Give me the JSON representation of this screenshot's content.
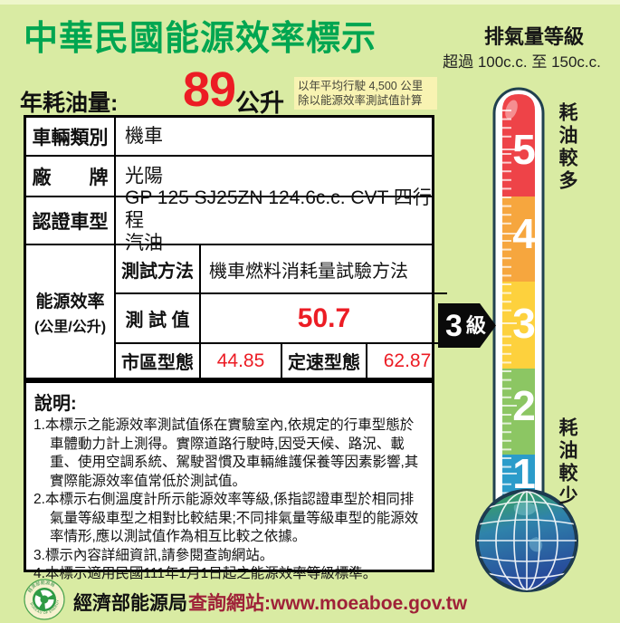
{
  "page": {
    "bg_color": "#d9eba3"
  },
  "header": {
    "title": "中華民國能源效率標示",
    "title_color": "#00a651",
    "displacement_title": "排氣量等級",
    "displacement_range": "超過 100c.c. 至 150c.c."
  },
  "annual": {
    "label": "年耗油量:",
    "value": "89",
    "unit": "公升",
    "value_color": "#ec1c24",
    "note_line1": "以年平均行駛 4,500 公里",
    "note_line2": "除以能源效率測試值計算"
  },
  "table": {
    "rows": [
      {
        "label": "車輛類別",
        "value": "機車"
      },
      {
        "label": "廠　　牌",
        "value": "光陽"
      },
      {
        "label": "認證車型",
        "value": "GP 125 SJ25ZN 124.6c.c. CVT 四行程\n汽油"
      }
    ],
    "efficiency": {
      "label_line1": "能源效率",
      "label_line2": "(公里/公升)",
      "method_label": "測試方法",
      "method_value": "機車燃料消耗量試驗方法",
      "test_label": "測 試 值",
      "test_value": "50.7",
      "urban_label": "市區型態",
      "urban_value": "44.85",
      "cruise_label": "定速型態",
      "cruise_value": "62.87",
      "value_color": "#ec1c24"
    }
  },
  "notes": {
    "title": "說明:",
    "items": [
      "1.本標示之能源效率測試值係在實驗室內,依規定的行車型態於車體動力計上測得。實際道路行駛時,因受天候、路況、載重、使用空調系統、駕駛習慣及車輛維護保養等因素影響,其實際能源效率值常低於測試值。",
      "2.本標示右側溫度計所示能源效率等級,係指認證車型於相同排氣量等級車型之相對比較結果;不同排氣量等級車型的能源效率情形,應以測試值作為相互比較之依據。",
      "3.標示內容詳細資訊,請參閱查詢網站。",
      "4.本標示適用民國111年1月1日起之能源效率等級標準。"
    ]
  },
  "thermometer": {
    "top_label": "耗油較多",
    "bottom_label": "耗油較少",
    "badge_num": "3",
    "badge_unit": "級",
    "levels": [
      {
        "num": "5",
        "color": "#ee4348"
      },
      {
        "num": "4",
        "color": "#f6a63e"
      },
      {
        "num": "3",
        "color": "#fdd13d"
      },
      {
        "num": "2",
        "color": "#8cc663"
      },
      {
        "num": "1",
        "color": "#2b9cca"
      }
    ]
  },
  "footer": {
    "agency": "經濟部能源局",
    "logo_top_text": "經濟部能源局",
    "logo_bottom_text": "BUREAU OF ENERGY",
    "site_label": "查詢網站:",
    "site_url": "www.moeaboe.gov.tw",
    "site_color": "#9f2138"
  }
}
